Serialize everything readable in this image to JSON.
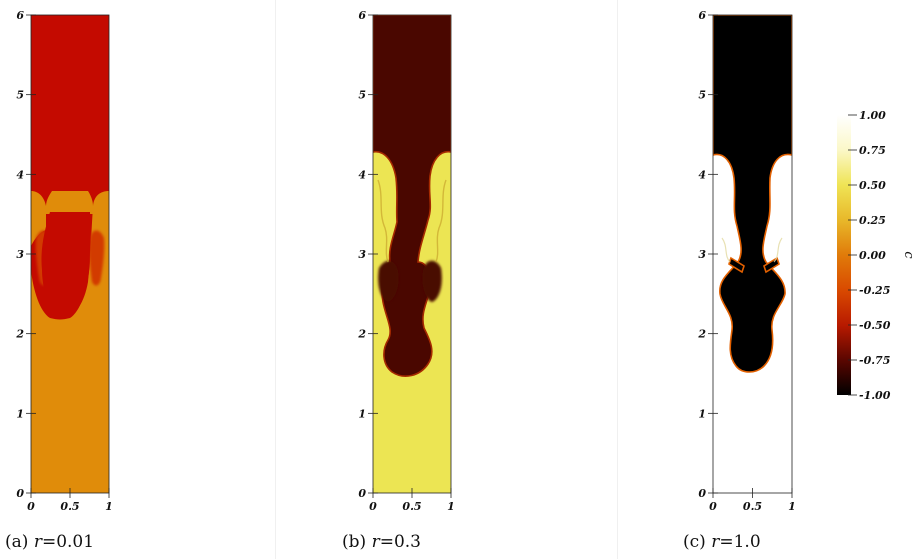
{
  "chart_data": [
    {
      "type": "heatmap",
      "panel_label": "(a)",
      "r_value": "0.01",
      "x_ticks": [
        "0",
        "0.5",
        "1"
      ],
      "y_ticks": [
        "0",
        "1",
        "2",
        "3",
        "4",
        "5",
        "6"
      ],
      "xlim": [
        0,
        1
      ],
      "ylim": [
        0,
        6
      ],
      "fill_colors": {
        "heavy": "#c40a00",
        "light": "#e08c0a",
        "mixed": "#d23a04"
      }
    },
    {
      "type": "heatmap",
      "panel_label": "(b)",
      "r_value": "0.3",
      "x_ticks": [
        "0",
        "0.5",
        "1"
      ],
      "y_ticks": [
        "0",
        "1",
        "2",
        "3",
        "4",
        "5",
        "6"
      ],
      "xlim": [
        0,
        1
      ],
      "ylim": [
        0,
        6
      ],
      "fill_colors": {
        "heavy": "#4a0700",
        "light": "#ece553",
        "edge": "#a52a00"
      }
    },
    {
      "type": "heatmap",
      "panel_label": "(c)",
      "r_value": "1.0",
      "x_ticks": [
        "0",
        "0.5",
        "1"
      ],
      "y_ticks": [
        "0",
        "1",
        "2",
        "3",
        "4",
        "5",
        "6"
      ],
      "xlim": [
        0,
        1
      ],
      "ylim": [
        0,
        6
      ],
      "fill_colors": {
        "heavy": "#000000",
        "light": "#ffffff",
        "edge": "#e26000"
      }
    }
  ],
  "colorbar": {
    "label": "c",
    "ticks": [
      "1.00",
      "0.75",
      "0.50",
      "0.25",
      "0.00",
      "-0.25",
      "-0.50",
      "-0.75",
      "-1.00"
    ],
    "range": [
      -1.0,
      1.0
    ],
    "gradient": [
      "#000000",
      "#5a0600",
      "#b81a00",
      "#d94a00",
      "#e07b0a",
      "#e8b82a",
      "#efe455",
      "#fbf8c8",
      "#ffffff"
    ]
  },
  "captions": [
    {
      "label": "(a)",
      "var": "r",
      "eq": "=",
      "value": "0.01"
    },
    {
      "label": "(b)",
      "var": "r",
      "eq": "=",
      "value": "0.3"
    },
    {
      "label": "(c)",
      "var": "r",
      "eq": "=",
      "value": "1.0"
    }
  ]
}
